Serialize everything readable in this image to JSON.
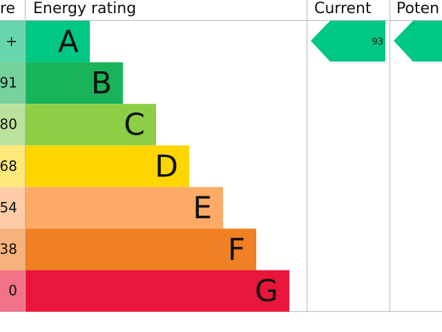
{
  "header": {
    "columns": [
      "re",
      "Energy rating",
      "Current",
      "Poten"
    ]
  },
  "rows": [
    {
      "score": "+",
      "rating": "A"
    },
    {
      "score": "91",
      "rating": "B"
    },
    {
      "score": "80",
      "rating": "C"
    },
    {
      "score": "68",
      "rating": "D"
    },
    {
      "score": "54",
      "rating": "E"
    },
    {
      "score": "38",
      "rating": "F"
    },
    {
      "score": "0",
      "rating": "G"
    }
  ],
  "current": {
    "value": 93
  }
}
